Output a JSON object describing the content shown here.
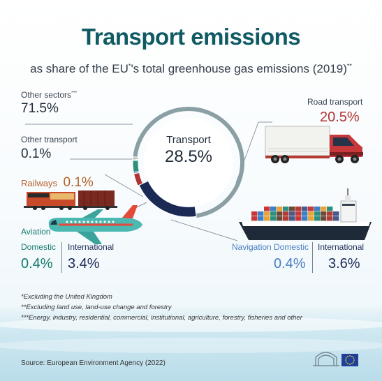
{
  "header": {
    "title": "Transport emissions",
    "subtitle_pre": "as share of the EU",
    "subtitle_sup1": "*",
    "subtitle_post": "'s total greenhouse gas emissions (2019)",
    "subtitle_sup2": "**"
  },
  "labels": {
    "other_sectors": "Other sectors",
    "other_sectors_sup": "***",
    "other_sectors_value": "71.5%",
    "transport": "Transport",
    "transport_value": "28.5%",
    "other_transport": "Other transport",
    "other_transport_value": "0.1%",
    "railways": "Railways",
    "railways_value": "0.1%",
    "road_transport": "Road transport",
    "road_transport_value": "20.5%",
    "aviation": "Aviation",
    "aviation_domestic": "Domestic",
    "aviation_domestic_value": "0.4%",
    "aviation_international": "International",
    "aviation_international_value": "3.4%",
    "navigation": "Navigation",
    "navigation_domestic": "Domestic",
    "navigation_domestic_value": "0.4%",
    "navigation_international": "International",
    "navigation_international_value": "3.6%"
  },
  "footnotes": {
    "note1": "*Excluding the United Kingdom",
    "note2": "**Excluding land use, land-use change and forestry",
    "note3": "***Energy, industry, residential, commercial, institutional, agriculture, forestry, fisheries and other",
    "source": "Source: European Environment Agency (2022)"
  },
  "chart_data": {
    "type": "pie",
    "title": "Transport emissions",
    "subtitle": "as share of the EU*'s total greenhouse gas emissions (2019)**",
    "unit": "%",
    "outer_ring": [
      {
        "label": "Other sectors",
        "value": 71.5
      },
      {
        "label": "Transport",
        "value": 28.5
      }
    ],
    "transport_breakdown": [
      {
        "label": "Road transport",
        "value": 20.5
      },
      {
        "label": "International navigation",
        "value": 3.6
      },
      {
        "label": "Domestic navigation",
        "value": 0.4
      },
      {
        "label": "International aviation",
        "value": 3.4
      },
      {
        "label": "Domestic aviation",
        "value": 0.4
      },
      {
        "label": "Railways",
        "value": 0.1
      },
      {
        "label": "Other transport",
        "value": 0.1
      }
    ]
  },
  "colors": {
    "title": "#0f5a63",
    "other_sectors_ring": "#8aa0a4",
    "road": "#1b2a55",
    "navigation_international": "#b23232",
    "navigation_domestic": "#4a7fc0",
    "aviation_international": "#2f8f7e",
    "aviation_domestic": "#5fb5a0",
    "railways": "#6a4b3a",
    "other_transport": "#9aa7b0"
  },
  "icons": {
    "truck": "truck-icon",
    "train": "train-icon",
    "airplane": "airplane-icon",
    "ship": "container-ship-icon",
    "eu_parliament": "eu-parliament-logo"
  }
}
